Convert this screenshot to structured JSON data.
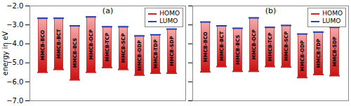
{
  "chart_data": [
    {
      "type": "bar",
      "title": "(a)",
      "ylabel": "energy in eV",
      "categories": [
        "MMCB-BCO",
        "MMCB-BCT",
        "MMCB-BCS",
        "MMCB-OCP",
        "MMCB-TCP",
        "MMCB-SCP",
        "MMCB-ODP",
        "MMCB-TDP",
        "MMCB-SDP"
      ],
      "series": [
        {
          "name": "HOMO",
          "color": "#cc2222",
          "values": [
            -5.5,
            -5.35,
            -5.9,
            -5.5,
            -5.25,
            -5.35,
            -5.65,
            -5.55,
            -5.55
          ]
        },
        {
          "name": "LUMO",
          "color": "#2244bb",
          "values": [
            -2.65,
            -2.65,
            -3.05,
            -2.58,
            -3.1,
            -3.1,
            -3.58,
            -3.52,
            -3.22
          ]
        }
      ],
      "ylim": [
        -7,
        -2
      ],
      "yticks": [
        -7,
        -6,
        -5,
        -4,
        -3,
        -2
      ],
      "legend": "upper right",
      "tick_labels": "y",
      "grid": false
    },
    {
      "type": "bar",
      "title": "(b)",
      "categories": [
        "MMCB-BCO",
        "MMCB-BCT",
        "MMCB-BCS",
        "MMCB-OCP",
        "MMCB-TCP",
        "MMCB-SCP",
        "MMCB-ODP",
        "MMCB-TDP",
        "MMCB-SDP"
      ],
      "series": [
        {
          "name": "HOMO",
          "color": "#cc2222",
          "values": [
            -5.48,
            -5.2,
            -5.45,
            -5.45,
            -5.2,
            -5.22,
            -5.78,
            -5.62,
            -5.68
          ]
        },
        {
          "name": "LUMO",
          "color": "#2244bb",
          "values": [
            -2.85,
            -3.05,
            -3.18,
            -2.63,
            -3.13,
            -3.03,
            -3.48,
            -3.38,
            -3.13
          ]
        }
      ],
      "ylim": [
        -7,
        -2
      ],
      "yticks": [
        -7,
        -6,
        -5,
        -4,
        -3,
        -2
      ],
      "legend": "upper right",
      "tick_labels": false,
      "grid": false
    }
  ]
}
